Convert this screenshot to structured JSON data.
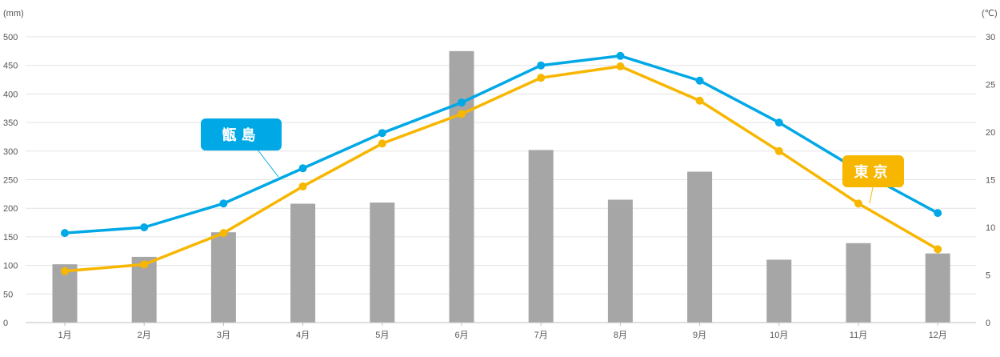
{
  "chart_data": {
    "type": "bar",
    "categories": [
      "1月",
      "2月",
      "3月",
      "4月",
      "5月",
      "6月",
      "7月",
      "8月",
      "9月",
      "10月",
      "11月",
      "12月"
    ],
    "y_left": {
      "unit": "(mm)",
      "range": [
        0,
        500
      ],
      "ticks": [
        0,
        50,
        100,
        150,
        200,
        250,
        300,
        350,
        400,
        450,
        500
      ]
    },
    "y_right": {
      "unit": "(℃)",
      "range": [
        0,
        30
      ],
      "ticks": [
        0,
        5,
        10,
        15,
        20,
        25,
        30
      ]
    },
    "grid": true,
    "bars": {
      "axis": "left",
      "values": [
        102,
        115,
        158,
        208,
        210,
        475,
        302,
        215,
        264,
        110,
        139,
        121
      ],
      "color": "#a6a6a6"
    },
    "series": [
      {
        "name": "甑島",
        "type": "line",
        "axis": "right",
        "color": "#00a8e6",
        "values": [
          9.4,
          10.0,
          12.5,
          16.2,
          19.9,
          23.1,
          27.0,
          28.0,
          25.4,
          21.0,
          16.0,
          11.5
        ],
        "label_bg": "#00a8e6",
        "label_text_color": "#ffffff"
      },
      {
        "name": "東京",
        "type": "line",
        "axis": "right",
        "color": "#f7b600",
        "values": [
          5.4,
          6.1,
          9.4,
          14.3,
          18.8,
          21.9,
          25.7,
          26.9,
          23.3,
          18.0,
          12.5,
          7.7
        ],
        "label_bg": "#f7b600",
        "label_text_color": "#ffffff"
      }
    ]
  }
}
